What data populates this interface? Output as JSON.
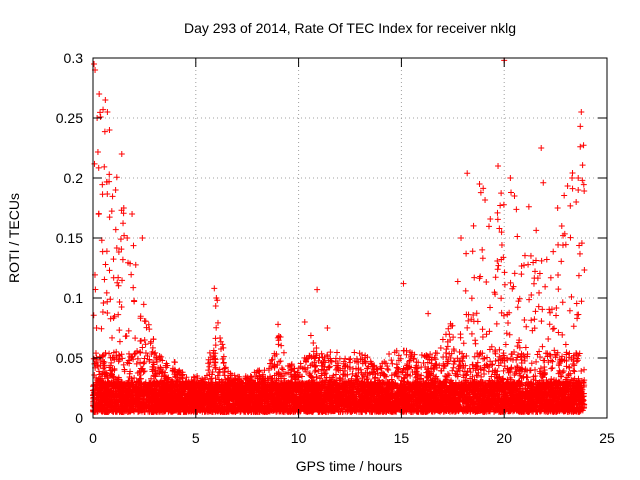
{
  "chart_data": {
    "type": "scatter",
    "title": "Day 293 of 2014, Rate Of TEC Index for receiver nklg",
    "xlabel": "GPS time / hours",
    "ylabel": "ROTI / TECUs",
    "xlim": [
      0,
      25
    ],
    "ylim": [
      0,
      0.3
    ],
    "xticks": [
      0,
      5,
      10,
      15,
      20,
      25
    ],
    "xtick_labels": [
      "0",
      "5",
      "10",
      "15",
      "20",
      "25"
    ],
    "yticks": [
      0,
      0.05,
      0.1,
      0.15,
      0.2,
      0.25,
      0.3
    ],
    "ytick_labels": [
      "0",
      "0.05",
      "0.1",
      "0.15",
      "0.2",
      "0.25",
      "0.3"
    ],
    "grid": true,
    "marker": "+",
    "color": "#ff0000",
    "series": [
      {
        "name": "ROTI",
        "envelope_hourly": [
          {
            "x": 0.0,
            "y": 0.27
          },
          {
            "x": 0.5,
            "y": 0.26
          },
          {
            "x": 1.0,
            "y": 0.21
          },
          {
            "x": 1.5,
            "y": 0.17
          },
          {
            "x": 2.0,
            "y": 0.15
          },
          {
            "x": 2.5,
            "y": 0.09
          },
          {
            "x": 3.0,
            "y": 0.06
          },
          {
            "x": 3.5,
            "y": 0.04
          },
          {
            "x": 4.0,
            "y": 0.045
          },
          {
            "x": 4.5,
            "y": 0.03
          },
          {
            "x": 5.0,
            "y": 0.03
          },
          {
            "x": 5.5,
            "y": 0.03
          },
          {
            "x": 6.0,
            "y": 0.1
          },
          {
            "x": 6.5,
            "y": 0.035
          },
          {
            "x": 7.0,
            "y": 0.03
          },
          {
            "x": 7.5,
            "y": 0.03
          },
          {
            "x": 8.0,
            "y": 0.035
          },
          {
            "x": 8.5,
            "y": 0.035
          },
          {
            "x": 9.0,
            "y": 0.075
          },
          {
            "x": 9.5,
            "y": 0.04
          },
          {
            "x": 10.0,
            "y": 0.04
          },
          {
            "x": 10.5,
            "y": 0.065
          },
          {
            "x": 11.0,
            "y": 0.06
          },
          {
            "x": 11.5,
            "y": 0.05
          },
          {
            "x": 12.0,
            "y": 0.05
          },
          {
            "x": 12.5,
            "y": 0.05
          },
          {
            "x": 13.0,
            "y": 0.05
          },
          {
            "x": 13.5,
            "y": 0.045
          },
          {
            "x": 14.0,
            "y": 0.045
          },
          {
            "x": 14.5,
            "y": 0.05
          },
          {
            "x": 15.0,
            "y": 0.055
          },
          {
            "x": 15.5,
            "y": 0.05
          },
          {
            "x": 16.0,
            "y": 0.05
          },
          {
            "x": 16.5,
            "y": 0.05
          },
          {
            "x": 17.0,
            "y": 0.06
          },
          {
            "x": 17.5,
            "y": 0.08
          },
          {
            "x": 18.0,
            "y": 0.14
          },
          {
            "x": 18.5,
            "y": 0.17
          },
          {
            "x": 19.0,
            "y": 0.19
          },
          {
            "x": 19.5,
            "y": 0.15
          },
          {
            "x": 20.0,
            "y": 0.2
          },
          {
            "x": 20.5,
            "y": 0.18
          },
          {
            "x": 21.0,
            "y": 0.15
          },
          {
            "x": 21.5,
            "y": 0.16
          },
          {
            "x": 22.0,
            "y": 0.13
          },
          {
            "x": 22.5,
            "y": 0.15
          },
          {
            "x": 23.0,
            "y": 0.2
          },
          {
            "x": 23.5,
            "y": 0.2
          },
          {
            "x": 23.9,
            "y": 0.25
          }
        ],
        "outliers": [
          {
            "x": 0.05,
            "y": 0.295
          },
          {
            "x": 0.1,
            "y": 0.29
          },
          {
            "x": 0.3,
            "y": 0.27
          },
          {
            "x": 0.6,
            "y": 0.265
          },
          {
            "x": 0.7,
            "y": 0.255
          },
          {
            "x": 0.2,
            "y": 0.25
          },
          {
            "x": 0.8,
            "y": 0.24
          },
          {
            "x": 1.4,
            "y": 0.22
          },
          {
            "x": 1.1,
            "y": 0.19
          },
          {
            "x": 1.9,
            "y": 0.17
          },
          {
            "x": 2.4,
            "y": 0.15
          },
          {
            "x": 5.9,
            "y": 0.108
          },
          {
            "x": 6.0,
            "y": 0.1
          },
          {
            "x": 9.0,
            "y": 0.078
          },
          {
            "x": 10.9,
            "y": 0.107
          },
          {
            "x": 11.4,
            "y": 0.075
          },
          {
            "x": 10.3,
            "y": 0.08
          },
          {
            "x": 15.1,
            "y": 0.112
          },
          {
            "x": 16.3,
            "y": 0.087
          },
          {
            "x": 17.9,
            "y": 0.15
          },
          {
            "x": 18.2,
            "y": 0.204
          },
          {
            "x": 18.8,
            "y": 0.195
          },
          {
            "x": 19.7,
            "y": 0.21
          },
          {
            "x": 20.0,
            "y": 0.298
          },
          {
            "x": 20.3,
            "y": 0.2
          },
          {
            "x": 20.5,
            "y": 0.185
          },
          {
            "x": 21.2,
            "y": 0.176
          },
          {
            "x": 21.8,
            "y": 0.225
          },
          {
            "x": 21.9,
            "y": 0.196
          },
          {
            "x": 22.6,
            "y": 0.175
          },
          {
            "x": 22.8,
            "y": 0.16
          },
          {
            "x": 23.3,
            "y": 0.2
          },
          {
            "x": 23.6,
            "y": 0.19
          },
          {
            "x": 23.75,
            "y": 0.255
          },
          {
            "x": 23.7,
            "y": 0.243
          },
          {
            "x": 23.7,
            "y": 0.226
          },
          {
            "x": 23.6,
            "y": 0.2
          },
          {
            "x": 23.8,
            "y": 0.198
          },
          {
            "x": 23.5,
            "y": 0.18
          }
        ]
      }
    ]
  }
}
